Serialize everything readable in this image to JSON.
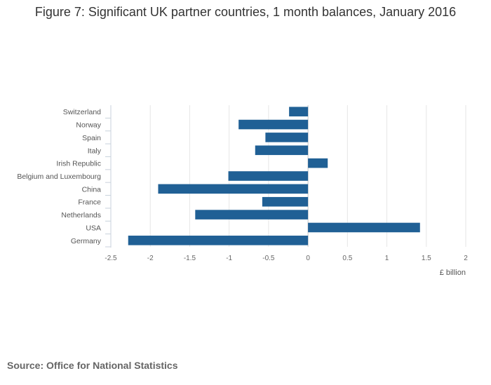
{
  "chart_data": {
    "type": "bar",
    "orientation": "horizontal",
    "title": "Figure 7: Significant UK partner countries, 1 month balances, January 2016",
    "xlabel": "£ billion",
    "ylabel": "",
    "xlim": [
      -2.5,
      2
    ],
    "xticks": [
      "-2.5",
      "-2",
      "-1.5",
      "-1",
      "-0.5",
      "0",
      "0.5",
      "1",
      "1.5",
      "2"
    ],
    "categories": [
      "Switzerland",
      "Norway",
      "Spain",
      "Italy",
      "Irish Republic",
      "Belgium and Luxembourg",
      "China",
      "France",
      "Netherlands",
      "USA",
      "Germany"
    ],
    "values": [
      -0.24,
      -0.88,
      -0.54,
      -0.67,
      0.25,
      -1.01,
      -1.9,
      -0.58,
      -1.43,
      1.42,
      -2.28
    ],
    "grid": true,
    "bar_color": "#206095",
    "grid_color": "#e6e6e6"
  },
  "footer": {
    "source": "Source: Office for National Statistics"
  }
}
